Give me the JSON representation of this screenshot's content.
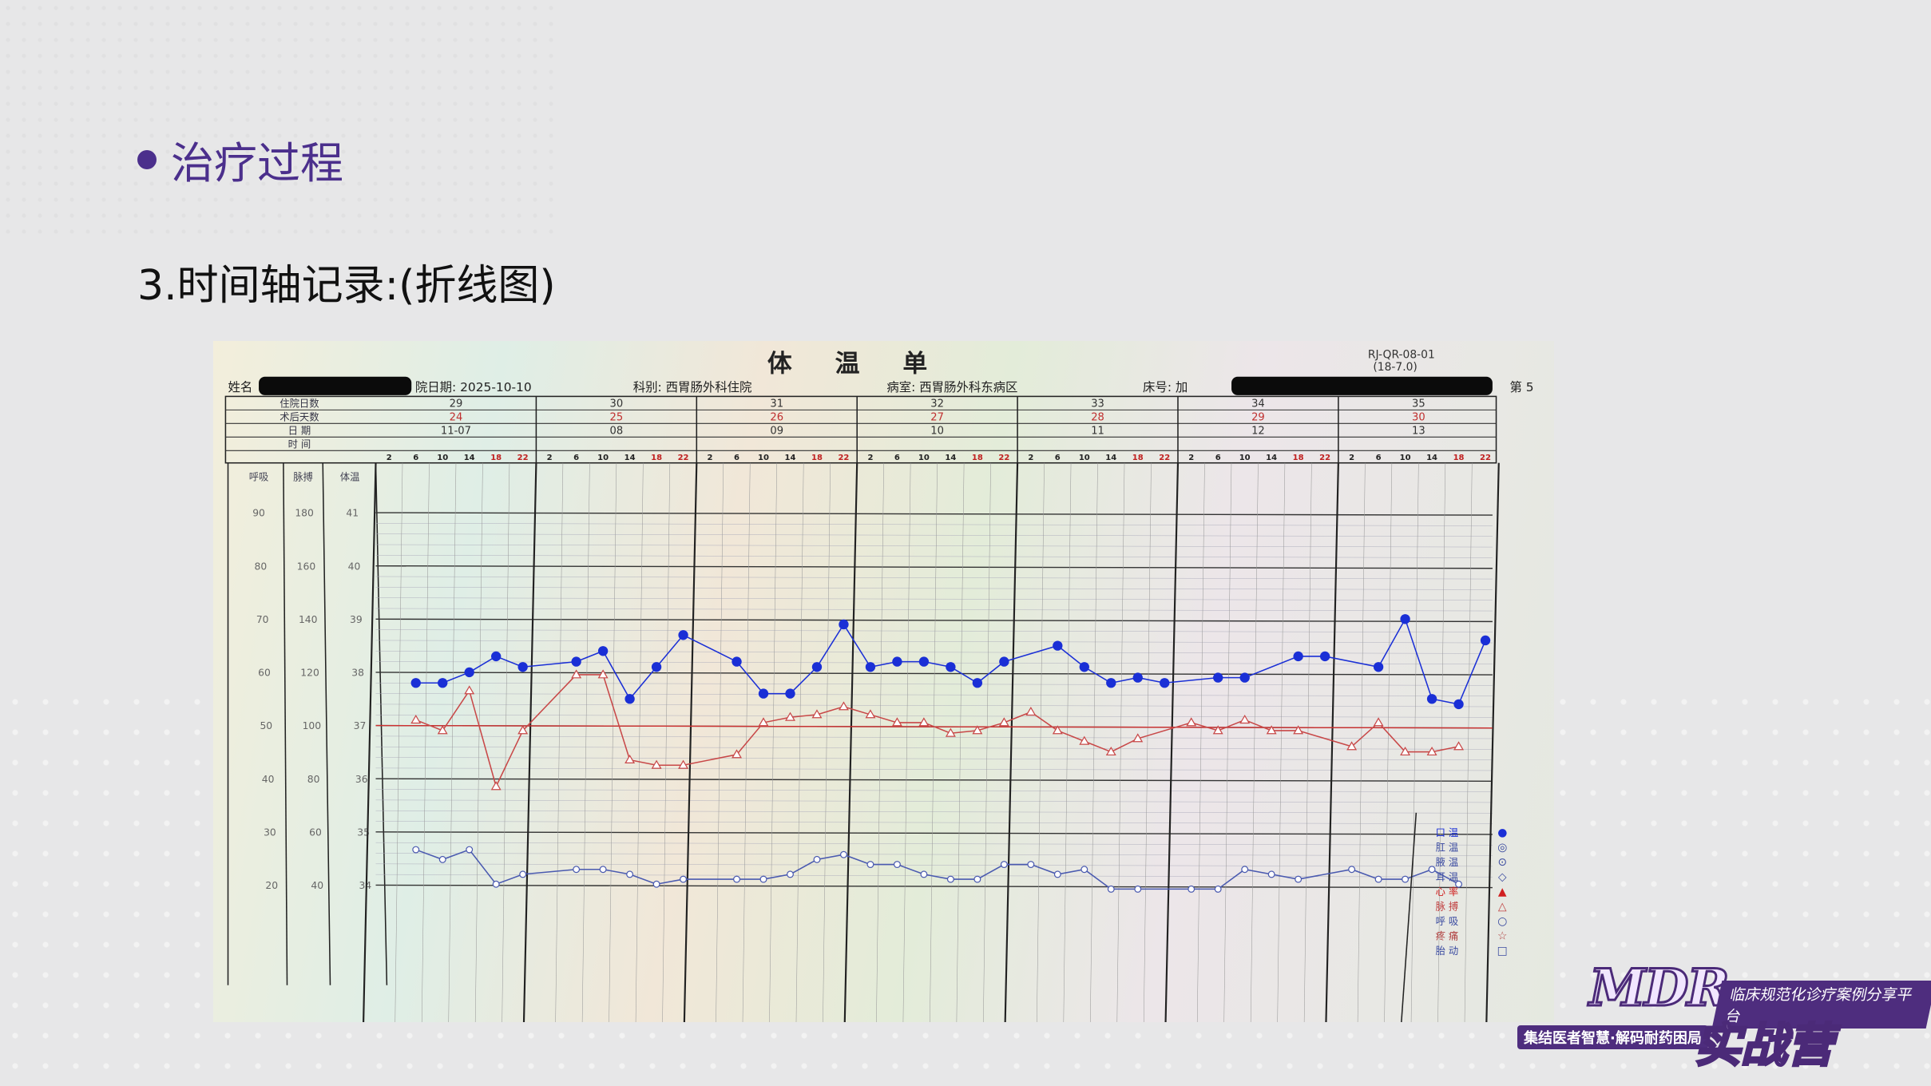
{
  "slide": {
    "section_title": "治疗过程",
    "subtitle": "3.时间轴记录:(折线图)"
  },
  "logo": {
    "name": "MDR",
    "banner": "临床规范化诊疗案例分享平台",
    "slogan": "集结医者智慧·解码耐药困局",
    "camp": "实战营"
  },
  "chart_data": {
    "type": "line",
    "title": "体 温 单",
    "form_code": "RJ-QR-08-01",
    "form_version": "(18-7.0)",
    "header_fields": {
      "name_label": "姓名",
      "admit_date": "院日期: 2025-10-10",
      "department": "科别: 西胃肠外科住院",
      "ward": "病室: 西胃肠外科东病区",
      "bed": "床号: 加",
      "page": "第 5"
    },
    "row_labels": {
      "hospital_day": "住院日数",
      "postop_day": "术后天数",
      "date": "日  期",
      "time": "时  间"
    },
    "hospital_days": [
      "29",
      "30",
      "31",
      "32",
      "33",
      "34",
      "35"
    ],
    "postop_days": [
      "24",
      "25",
      "26",
      "27",
      "28",
      "29",
      "30"
    ],
    "dates": [
      "11-07",
      "08",
      "09",
      "10",
      "11",
      "12",
      "13"
    ],
    "hours": [
      2,
      6,
      10,
      14,
      18,
      22
    ],
    "axis_headers": {
      "resp": "呼吸",
      "pulse": "脉搏",
      "temp": "体温"
    },
    "resp_ticks": [
      "90",
      "80",
      "70",
      "60",
      "50",
      "40",
      "30",
      "20"
    ],
    "pulse_ticks": [
      "180",
      "160",
      "140",
      "120",
      "100",
      "80",
      "60",
      "40"
    ],
    "temp_ticks": [
      "41",
      "40",
      "39",
      "38",
      "37",
      "36",
      "35",
      "34"
    ],
    "ylim_temp": [
      34,
      41
    ],
    "grid": true,
    "legend_position": "right",
    "legend": [
      {
        "label": "口 温",
        "symbol": "●",
        "color": "#1a2fd6"
      },
      {
        "label": "肛 温",
        "symbol": "◎",
        "color": "#3a4aa0"
      },
      {
        "label": "腋 温",
        "symbol": "⊙",
        "color": "#3a4aa0"
      },
      {
        "label": "耳 温",
        "symbol": "◇",
        "color": "#3a4aa0"
      },
      {
        "label": "心 率",
        "symbol": "▲",
        "color": "#d02020"
      },
      {
        "label": "脉 搏",
        "symbol": "△",
        "color": "#c04040"
      },
      {
        "label": "呼 吸",
        "symbol": "○",
        "color": "#3a4aa0"
      },
      {
        "label": "疼 痛",
        "symbol": "☆",
        "color": "#b04040"
      },
      {
        "label": "胎 动",
        "symbol": "□",
        "color": "#3a4aa0"
      }
    ],
    "series": [
      {
        "name": "口温",
        "color": "#1a2fd6",
        "points": [
          [
            "11-07",
            6,
            37.8
          ],
          [
            "11-07",
            10,
            37.8
          ],
          [
            "11-07",
            14,
            38.0
          ],
          [
            "11-07",
            18,
            38.3
          ],
          [
            "11-07",
            22,
            38.1
          ],
          [
            "08",
            6,
            38.2
          ],
          [
            "08",
            10,
            38.4
          ],
          [
            "08",
            14,
            37.5
          ],
          [
            "08",
            18,
            38.1
          ],
          [
            "08",
            22,
            38.7
          ],
          [
            "09",
            6,
            38.2
          ],
          [
            "09",
            10,
            37.6
          ],
          [
            "09",
            14,
            37.6
          ],
          [
            "09",
            18,
            38.1
          ],
          [
            "09",
            22,
            38.9
          ],
          [
            "10",
            2,
            38.1
          ],
          [
            "10",
            6,
            38.2
          ],
          [
            "10",
            10,
            38.2
          ],
          [
            "10",
            14,
            38.1
          ],
          [
            "10",
            18,
            37.8
          ],
          [
            "10",
            22,
            38.2
          ],
          [
            "11",
            6,
            38.5
          ],
          [
            "11",
            10,
            38.1
          ],
          [
            "11",
            14,
            37.8
          ],
          [
            "11",
            18,
            37.9
          ],
          [
            "11",
            22,
            37.8
          ],
          [
            "12",
            6,
            37.9
          ],
          [
            "12",
            10,
            37.9
          ],
          [
            "12",
            18,
            38.3
          ],
          [
            "12",
            22,
            38.3
          ],
          [
            "13",
            6,
            38.1
          ],
          [
            "13",
            10,
            39.0
          ],
          [
            "13",
            14,
            37.5
          ],
          [
            "13",
            18,
            37.4
          ],
          [
            "13",
            22,
            38.6
          ]
        ]
      },
      {
        "name": "脉搏",
        "color": "#c84848",
        "points": [
          [
            "11-07",
            6,
            102
          ],
          [
            "11-07",
            10,
            98
          ],
          [
            "11-07",
            14,
            113
          ],
          [
            "11-07",
            18,
            77
          ],
          [
            "11-07",
            22,
            98
          ],
          [
            "08",
            6,
            119
          ],
          [
            "08",
            10,
            119
          ],
          [
            "08",
            14,
            87
          ],
          [
            "08",
            18,
            85
          ],
          [
            "08",
            22,
            85
          ],
          [
            "09",
            6,
            89
          ],
          [
            "09",
            10,
            101
          ],
          [
            "09",
            14,
            103
          ],
          [
            "09",
            18,
            104
          ],
          [
            "09",
            22,
            107
          ],
          [
            "10",
            2,
            104
          ],
          [
            "10",
            6,
            101
          ],
          [
            "10",
            10,
            101
          ],
          [
            "10",
            14,
            97
          ],
          [
            "10",
            18,
            98
          ],
          [
            "10",
            22,
            101
          ],
          [
            "11",
            2,
            105
          ],
          [
            "11",
            6,
            98
          ],
          [
            "11",
            10,
            94
          ],
          [
            "11",
            14,
            90
          ],
          [
            "11",
            18,
            95
          ],
          [
            "12",
            2,
            101
          ],
          [
            "12",
            6,
            98
          ],
          [
            "12",
            10,
            102
          ],
          [
            "12",
            14,
            98
          ],
          [
            "12",
            18,
            98
          ],
          [
            "13",
            2,
            92
          ],
          [
            "13",
            6,
            101
          ],
          [
            "13",
            10,
            90
          ],
          [
            "13",
            14,
            90
          ],
          [
            "13",
            18,
            92
          ]
        ]
      },
      {
        "name": "呼吸",
        "color": "#4a5ab0",
        "points": [
          [
            "11-07",
            6,
            25
          ],
          [
            "11-07",
            10,
            23
          ],
          [
            "11-07",
            14,
            25
          ],
          [
            "11-07",
            18,
            18
          ],
          [
            "11-07",
            22,
            20
          ],
          [
            "08",
            6,
            21
          ],
          [
            "08",
            10,
            21
          ],
          [
            "08",
            14,
            20
          ],
          [
            "08",
            18,
            18
          ],
          [
            "08",
            22,
            19
          ],
          [
            "09",
            6,
            19
          ],
          [
            "09",
            10,
            19
          ],
          [
            "09",
            14,
            20
          ],
          [
            "09",
            18,
            23
          ],
          [
            "09",
            22,
            24
          ],
          [
            "10",
            2,
            22
          ],
          [
            "10",
            6,
            22
          ],
          [
            "10",
            10,
            20
          ],
          [
            "10",
            14,
            19
          ],
          [
            "10",
            18,
            19
          ],
          [
            "10",
            22,
            22
          ],
          [
            "11",
            2,
            22
          ],
          [
            "11",
            6,
            20
          ],
          [
            "11",
            10,
            21
          ],
          [
            "11",
            14,
            17
          ],
          [
            "11",
            18,
            17
          ],
          [
            "12",
            2,
            17
          ],
          [
            "12",
            6,
            17
          ],
          [
            "12",
            10,
            21
          ],
          [
            "12",
            14,
            20
          ],
          [
            "12",
            18,
            19
          ],
          [
            "13",
            2,
            21
          ],
          [
            "13",
            6,
            19
          ],
          [
            "13",
            10,
            19
          ],
          [
            "13",
            14,
            21
          ],
          [
            "13",
            18,
            18
          ]
        ]
      }
    ]
  }
}
